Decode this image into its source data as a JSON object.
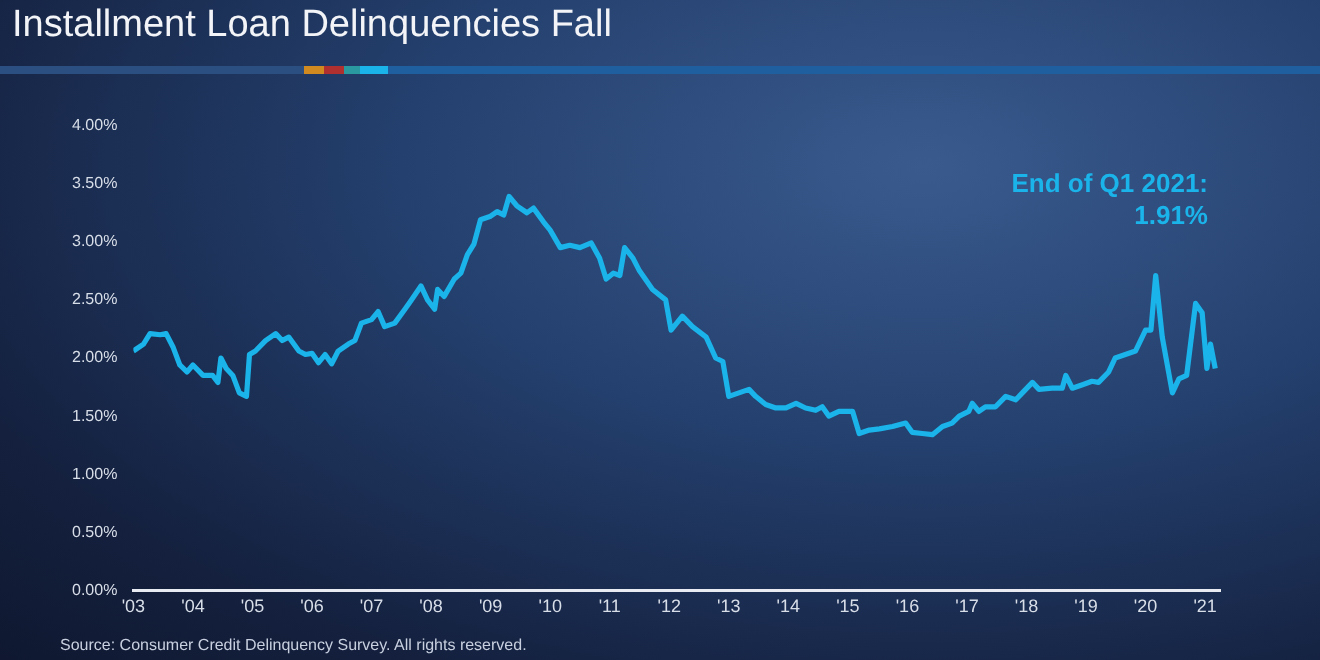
{
  "chart_data": {
    "type": "line",
    "title": "Installment Loan Delinquencies Fall",
    "x": [
      2003.0,
      2003.17,
      2003.28,
      2003.45,
      2003.55,
      2003.67,
      2003.78,
      2003.9,
      2004.0,
      2004.17,
      2004.33,
      2004.42,
      2004.47,
      2004.56,
      2004.67,
      2004.78,
      2004.9,
      2004.95,
      2005.05,
      2005.22,
      2005.39,
      2005.5,
      2005.61,
      2005.78,
      2005.89,
      2006.0,
      2006.11,
      2006.22,
      2006.33,
      2006.44,
      2006.61,
      2006.72,
      2006.83,
      2007.0,
      2007.11,
      2007.22,
      2007.39,
      2007.56,
      2007.67,
      2007.83,
      2007.94,
      2008.06,
      2008.11,
      2008.22,
      2008.39,
      2008.5,
      2008.61,
      2008.72,
      2008.83,
      2009.0,
      2009.11,
      2009.22,
      2009.31,
      2009.44,
      2009.61,
      2009.72,
      2009.89,
      2010.0,
      2010.17,
      2010.33,
      2010.5,
      2010.69,
      2010.83,
      2010.94,
      2011.06,
      2011.17,
      2011.25,
      2011.39,
      2011.5,
      2011.72,
      2011.94,
      2012.03,
      2012.22,
      2012.39,
      2012.62,
      2012.78,
      2012.9,
      2013.0,
      2013.17,
      2013.34,
      2013.45,
      2013.62,
      2013.79,
      2013.96,
      2014.13,
      2014.29,
      2014.46,
      2014.57,
      2014.68,
      2014.85,
      2015.08,
      2015.19,
      2015.36,
      2015.53,
      2015.75,
      2015.97,
      2016.08,
      2016.25,
      2016.42,
      2016.59,
      2016.75,
      2016.87,
      2017.03,
      2017.09,
      2017.2,
      2017.31,
      2017.48,
      2017.65,
      2017.82,
      2017.93,
      2018.1,
      2018.21,
      2018.43,
      2018.6,
      2018.66,
      2018.77,
      2018.94,
      2019.1,
      2019.21,
      2019.38,
      2019.49,
      2019.66,
      2019.83,
      2020.0,
      2020.09,
      2020.17,
      2020.28,
      2020.45,
      2020.56,
      2020.69,
      2020.84,
      2020.95,
      2021.03,
      2021.09,
      2021.17
    ],
    "values": [
      2.06,
      2.12,
      2.21,
      2.2,
      2.21,
      2.09,
      1.94,
      1.88,
      1.94,
      1.85,
      1.85,
      1.79,
      2.0,
      1.91,
      1.85,
      1.7,
      1.67,
      2.03,
      2.06,
      2.15,
      2.21,
      2.15,
      2.18,
      2.06,
      2.03,
      2.04,
      1.96,
      2.03,
      1.95,
      2.06,
      2.12,
      2.15,
      2.3,
      2.33,
      2.4,
      2.27,
      2.3,
      2.42,
      2.5,
      2.62,
      2.5,
      2.42,
      2.59,
      2.53,
      2.68,
      2.73,
      2.89,
      2.98,
      3.19,
      3.22,
      3.26,
      3.23,
      3.39,
      3.31,
      3.25,
      3.29,
      3.17,
      3.1,
      2.95,
      2.97,
      2.95,
      2.99,
      2.86,
      2.68,
      2.73,
      2.71,
      2.95,
      2.86,
      2.75,
      2.59,
      2.5,
      2.24,
      2.36,
      2.27,
      2.18,
      2.0,
      1.97,
      1.67,
      1.7,
      1.73,
      1.67,
      1.6,
      1.57,
      1.57,
      1.61,
      1.57,
      1.55,
      1.58,
      1.5,
      1.54,
      1.54,
      1.35,
      1.38,
      1.39,
      1.41,
      1.44,
      1.36,
      1.35,
      1.34,
      1.41,
      1.44,
      1.5,
      1.54,
      1.61,
      1.54,
      1.58,
      1.58,
      1.67,
      1.64,
      1.7,
      1.79,
      1.73,
      1.74,
      1.74,
      1.85,
      1.74,
      1.77,
      1.8,
      1.79,
      1.88,
      2.0,
      2.03,
      2.06,
      2.24,
      2.24,
      2.71,
      2.18,
      1.7,
      1.82,
      1.85,
      2.47,
      2.39,
      1.91,
      2.12,
      1.91
    ],
    "color": "#1ab4ea",
    "xlim": [
      2003,
      2021.25
    ],
    "xticks": [
      {
        "value": 2003,
        "label": "'03"
      },
      {
        "value": 2004,
        "label": "'04"
      },
      {
        "value": 2005,
        "label": "'05"
      },
      {
        "value": 2006,
        "label": "'06"
      },
      {
        "value": 2007,
        "label": "'07"
      },
      {
        "value": 2008,
        "label": "'08"
      },
      {
        "value": 2009,
        "label": "'09"
      },
      {
        "value": 2010,
        "label": "'10"
      },
      {
        "value": 2011,
        "label": "'11"
      },
      {
        "value": 2012,
        "label": "'12"
      },
      {
        "value": 2013,
        "label": "'13"
      },
      {
        "value": 2014,
        "label": "'14"
      },
      {
        "value": 2015,
        "label": "'15"
      },
      {
        "value": 2016,
        "label": "'16"
      },
      {
        "value": 2017,
        "label": "'17"
      },
      {
        "value": 2018,
        "label": "'18"
      },
      {
        "value": 2019,
        "label": "'19"
      },
      {
        "value": 2020,
        "label": "'20"
      },
      {
        "value": 2021,
        "label": "'21"
      }
    ],
    "ylim": [
      0,
      4
    ],
    "yticks": [
      {
        "value": 0,
        "label": "0.00%"
      },
      {
        "value": 0.5,
        "label": "0.50%"
      },
      {
        "value": 1,
        "label": "1.00%"
      },
      {
        "value": 1.5,
        "label": "1.50%"
      },
      {
        "value": 2,
        "label": "2.00%"
      },
      {
        "value": 2.5,
        "label": "2.50%"
      },
      {
        "value": 3,
        "label": "3.00%"
      },
      {
        "value": 3.5,
        "label": "3.50%"
      },
      {
        "value": 4,
        "label": "4.00%"
      }
    ],
    "annotations": [
      "End of Q1 2021: 1.91%",
      "Source: Consumer Credit Delinquency Survey. All rights reserved."
    ]
  }
}
